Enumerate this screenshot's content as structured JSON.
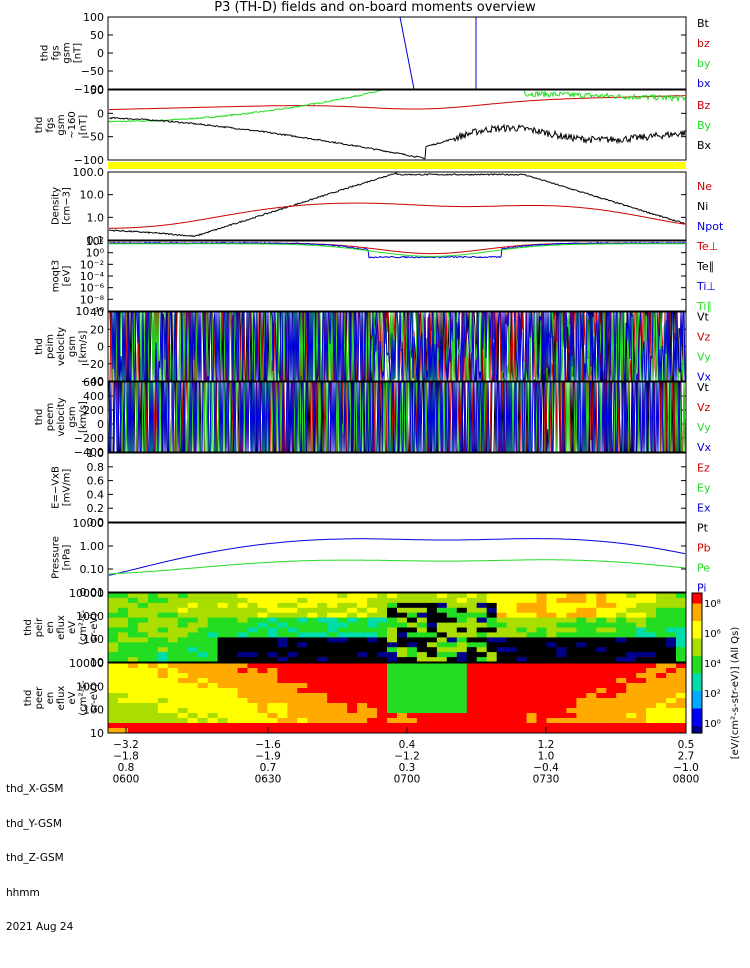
{
  "title": "P3 (TH-D) fields and on-board moments overview",
  "colors": {
    "black": "#000000",
    "red": "#cc0000",
    "green": "#22dd22",
    "blue": "#0000dd",
    "yellow": "#ffff00"
  },
  "chart_data": [
    {
      "id": "fgs_gsm",
      "type": "line",
      "ylabel": [
        "thd",
        "fgs",
        "gsm",
        "[nT]"
      ],
      "yticks": [
        "100",
        "50",
        "0",
        "−50",
        "−100"
      ],
      "ylim": [
        -100,
        100
      ],
      "legend": [
        {
          "name": "Bt",
          "color": "black"
        },
        {
          "name": "bz",
          "color": "red"
        },
        {
          "name": "by",
          "color": "green"
        },
        {
          "name": "bx",
          "color": "blue"
        }
      ]
    },
    {
      "id": "fgs_gsm_zoom",
      "type": "line",
      "ylabel": [
        "thd",
        "fgs",
        "gsm",
        "~160",
        "[nT]"
      ],
      "yticks": [
        "50",
        "0",
        "−50",
        "−100"
      ],
      "ylim": [
        -130,
        80
      ],
      "legend": [
        {
          "name": "Bz",
          "color": "red"
        },
        {
          "name": "By",
          "color": "green"
        },
        {
          "name": "Bx",
          "color": "black"
        }
      ]
    },
    {
      "id": "density",
      "type": "line",
      "ylabel": [
        "Density",
        "[cm−3]"
      ],
      "yticks": [
        "100.0",
        "10.0",
        "1.0",
        "0.1"
      ],
      "scale": "log",
      "ylim": [
        0.1,
        200
      ],
      "legend": [
        {
          "name": "Ne",
          "color": "red"
        },
        {
          "name": "Ni",
          "color": "black"
        },
        {
          "name": "Npot",
          "color": "blue"
        }
      ]
    },
    {
      "id": "temperature",
      "type": "line",
      "ylabel": [
        "moqt3",
        "[eV]"
      ],
      "yticks": [
        "10²",
        "10⁰",
        "10⁻²",
        "10⁻⁴",
        "10⁻⁶",
        "10⁻⁸",
        "10⁻¹⁰"
      ],
      "scale": "log",
      "legend": [
        {
          "name": "Te⊥",
          "color": "red"
        },
        {
          "name": "Te∥",
          "color": "black"
        },
        {
          "name": "Ti⊥",
          "color": "blue"
        },
        {
          "name": "Ti∥",
          "color": "green"
        }
      ]
    },
    {
      "id": "peim_velocity",
      "type": "line",
      "ylabel": [
        "thd",
        "peim",
        "velocity",
        "gsm",
        "[km/s]"
      ],
      "yticks": [
        "40",
        "20",
        "0",
        "−20",
        "−40"
      ],
      "ylim": [
        -40,
        40
      ],
      "legend": [
        {
          "name": "Vt",
          "color": "black"
        },
        {
          "name": "Vz",
          "color": "red"
        },
        {
          "name": "Vy",
          "color": "green"
        },
        {
          "name": "Vx",
          "color": "blue"
        }
      ]
    },
    {
      "id": "peem_velocity",
      "type": "line",
      "ylabel": [
        "thd",
        "peem",
        "velocity",
        "gsm",
        "[km/s]"
      ],
      "yticks": [
        "600",
        "400",
        "200",
        "0",
        "−200",
        "−400"
      ],
      "ylim": [
        -400,
        600
      ],
      "legend": [
        {
          "name": "Vt",
          "color": "black"
        },
        {
          "name": "Vz",
          "color": "red"
        },
        {
          "name": "Vy",
          "color": "green"
        },
        {
          "name": "Vx",
          "color": "blue"
        }
      ]
    },
    {
      "id": "efield",
      "type": "line",
      "ylabel": [
        "E=−VxB",
        "[mV/m]"
      ],
      "yticks": [
        "1.0",
        "0.8",
        "0.6",
        "0.4",
        "0.2",
        "0.0"
      ],
      "ylim": [
        0,
        1
      ],
      "legend": [
        {
          "name": "Ez",
          "color": "red"
        },
        {
          "name": "Ey",
          "color": "green"
        },
        {
          "name": "Ex",
          "color": "blue"
        }
      ]
    },
    {
      "id": "pressure",
      "type": "line",
      "ylabel": [
        "Pressure",
        "[nPa]"
      ],
      "yticks": [
        "10.00",
        "1.00",
        "0.10",
        "0.01"
      ],
      "scale": "log",
      "legend": [
        {
          "name": "Pt",
          "color": "black"
        },
        {
          "name": "Pb",
          "color": "red"
        },
        {
          "name": "Pe",
          "color": "green"
        },
        {
          "name": "Pi",
          "color": "blue"
        }
      ]
    },
    {
      "id": "peir_eflux",
      "type": "heatmap",
      "ylabel": [
        "thd",
        "peir",
        "en",
        "eflux",
        "eV",
        "(cm²-s-",
        "sr-eV)"
      ],
      "yticks": [
        "10000",
        "1000",
        "100",
        "10"
      ],
      "scale": "log"
    },
    {
      "id": "peer_eflux",
      "type": "heatmap",
      "ylabel": [
        "thd",
        "peer",
        "en",
        "eflux",
        "eV",
        "(cm²-s-",
        "sr-eV)"
      ],
      "yticks": [
        "10000",
        "1000",
        "100",
        "10"
      ],
      "scale": "log"
    }
  ],
  "colorbar": {
    "ticks": [
      "10⁸",
      "10⁶",
      "10⁴",
      "10²",
      "10⁰"
    ],
    "label": "[eV/(cm²-s-str-eV)] (All Qs)"
  },
  "xaxis": {
    "rows": [
      {
        "label": "thd_X-GSM",
        "values": [
          "−3.2",
          "−1.6",
          "0.4",
          "1.2",
          "0.5"
        ]
      },
      {
        "label": "thd_Y-GSM",
        "values": [
          "−1.8",
          "−1.9",
          "−1.2",
          "1.0",
          "2.7"
        ]
      },
      {
        "label": "thd_Z-GSM",
        "values": [
          "0.8",
          "0.7",
          "0.3",
          "−0.4",
          "−1.0"
        ]
      },
      {
        "label": "hhmm",
        "values": [
          "0600",
          "0630",
          "0700",
          "0730",
          "0800"
        ]
      }
    ],
    "date": "2021 Aug 24"
  }
}
